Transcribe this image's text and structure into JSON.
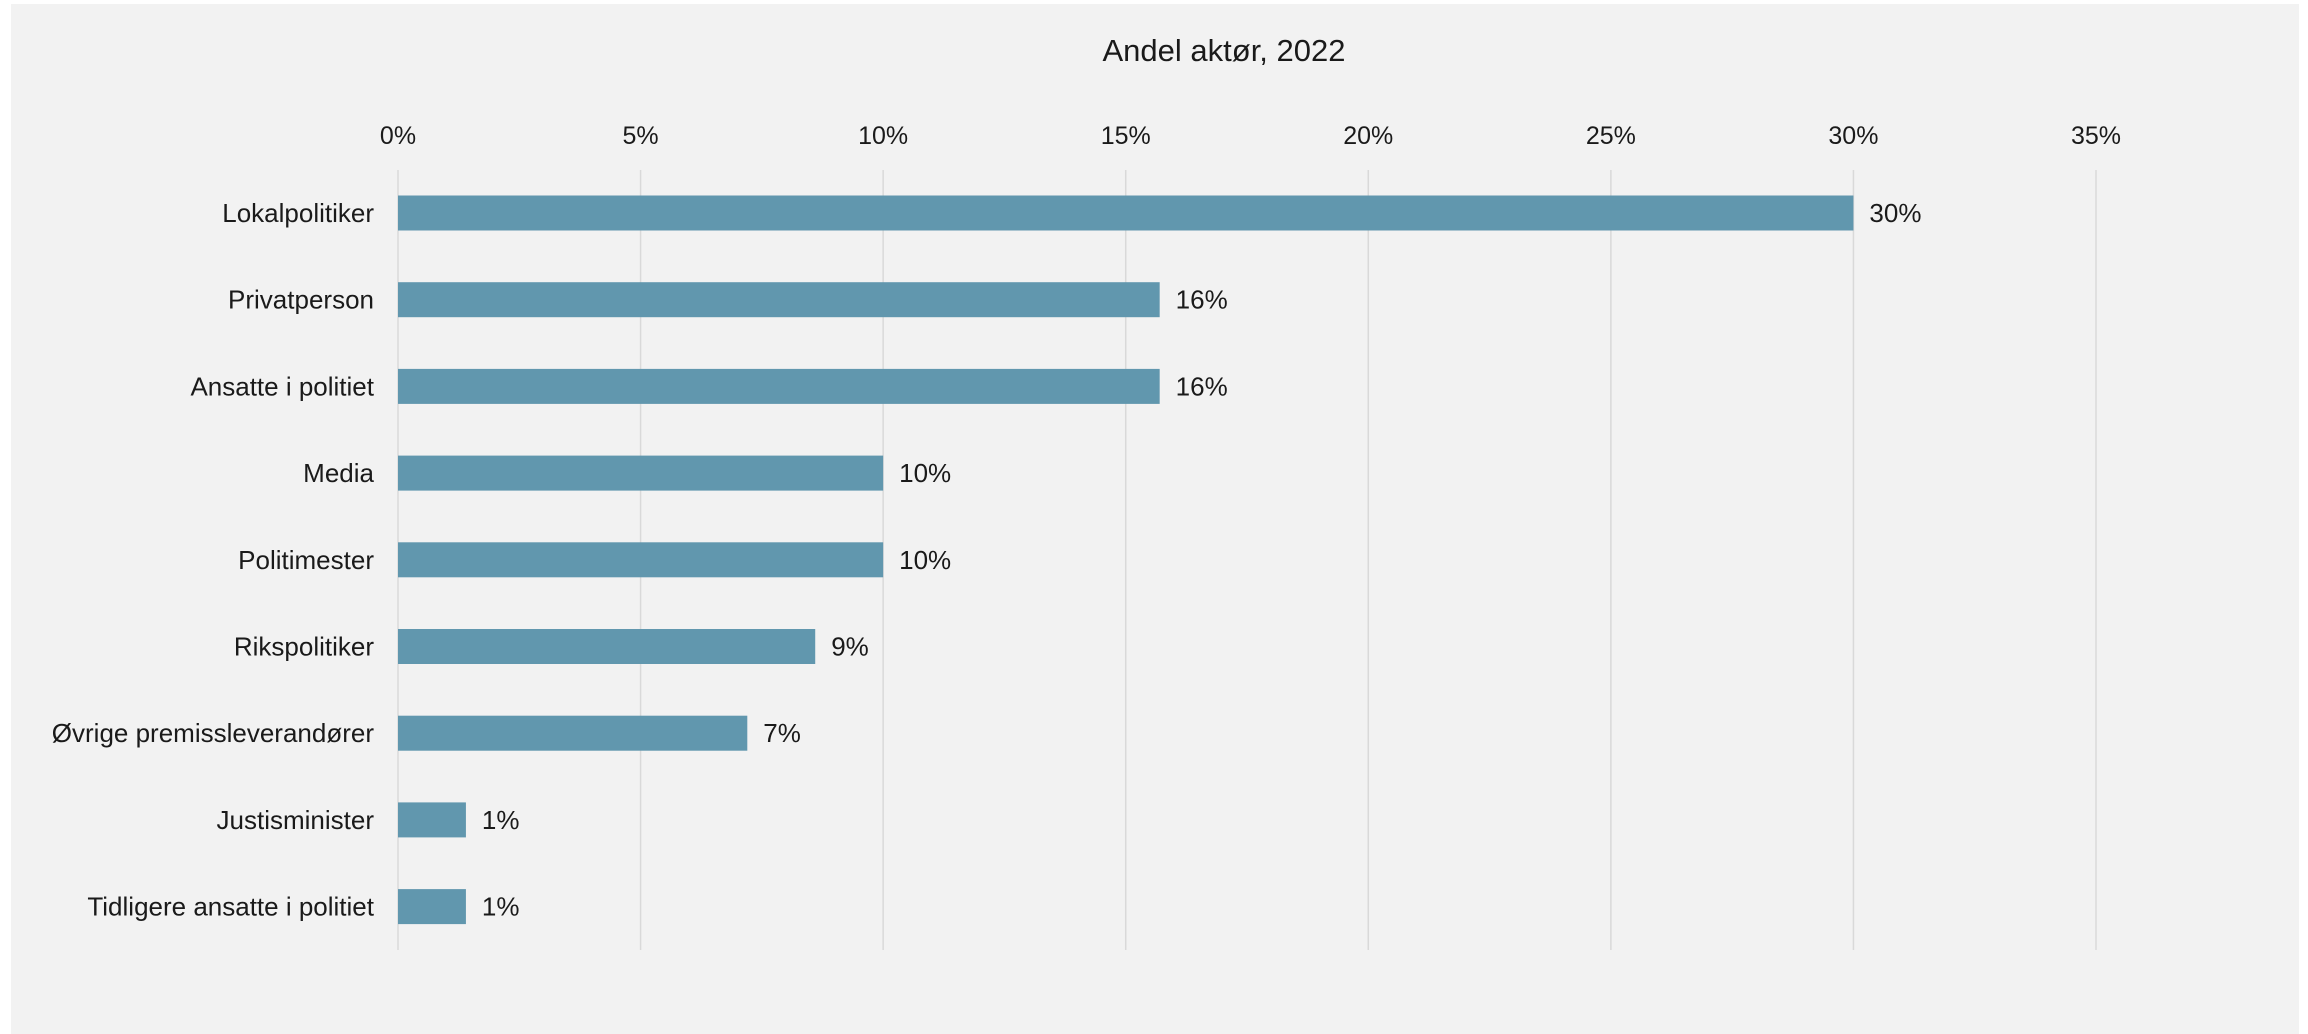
{
  "chart_data": {
    "type": "bar",
    "orientation": "horizontal",
    "title": "Andel aktør, 2022",
    "xlabel": "",
    "ylabel": "",
    "categories": [
      "Lokalpolitiker",
      "Privatperson",
      "Ansatte i politiet",
      "Media",
      "Politimester",
      "Rikspolitiker",
      "Øvrige premissleverandører",
      "Justisminister",
      "Tidligere ansatte i politiet"
    ],
    "values": [
      30,
      15.7,
      15.7,
      10,
      10,
      8.6,
      7.2,
      1.4,
      1.4
    ],
    "value_labels": [
      "30%",
      "16%",
      "16%",
      "10%",
      "10%",
      "9%",
      "7%",
      "1%",
      "1%"
    ],
    "xlim": [
      0,
      35
    ],
    "x_ticks": [
      0,
      5,
      10,
      15,
      20,
      25,
      30,
      35
    ],
    "x_tick_labels": [
      "0%",
      "5%",
      "10%",
      "15%",
      "20%",
      "25%",
      "30%",
      "35%"
    ],
    "x_axis_position": "top",
    "grid": true,
    "legend": "none",
    "colors": {
      "bar": "#6197ae",
      "background": "#f2f2f2",
      "grid": "#d9d9d9",
      "text": "#1a1a1a"
    }
  }
}
